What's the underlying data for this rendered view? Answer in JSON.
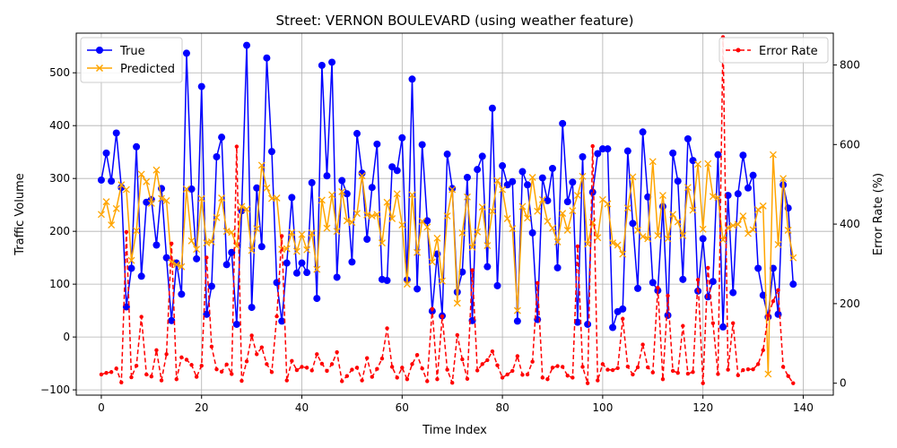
{
  "chart_data": {
    "type": "line",
    "title": "Street: VERNON BOULEVARD (using weather feature)",
    "xlabel": "Time Index",
    "ylabel_left": "Traffic Volume",
    "ylabel_right": "Error Rate (%)",
    "xlim": [
      -5,
      146
    ],
    "ylim_left": [
      -110,
      575
    ],
    "ylim_right": [
      -30,
      880
    ],
    "x_ticks": [
      0,
      20,
      40,
      60,
      80,
      100,
      120,
      140
    ],
    "y_ticks_left": [
      -100,
      0,
      100,
      200,
      300,
      400,
      500
    ],
    "y_ticks_right": [
      0,
      200,
      400,
      600,
      800
    ],
    "grid": true,
    "legend_left_position": "top-left",
    "legend_right_position": "top-right",
    "series": [
      {
        "name": "True",
        "axis": "left",
        "color": "#0000ff",
        "marker": "circle",
        "values": [
          297,
          348,
          295,
          386,
          283,
          57,
          130,
          360,
          115,
          255,
          260,
          174,
          281,
          150,
          31,
          140,
          81,
          537,
          280,
          148,
          474,
          43,
          96,
          341,
          378,
          137,
          160,
          24,
          239,
          552,
          56,
          282,
          171,
          528,
          351,
          103,
          30,
          140,
          264,
          121,
          140,
          122,
          292,
          73,
          514,
          305,
          520,
          113,
          296,
          271,
          142,
          385,
          310,
          185,
          283,
          365,
          109,
          107,
          322,
          315,
          377,
          108,
          488,
          91,
          364,
          220,
          49,
          157,
          40,
          346,
          281,
          85,
          123,
          302,
          31,
          317,
          342,
          133,
          433,
          97,
          324,
          288,
          294,
          30,
          313,
          288,
          197,
          33,
          301,
          258,
          319,
          131,
          404,
          256,
          293,
          28,
          341,
          24,
          274,
          347,
          356,
          356,
          18,
          48,
          53,
          352,
          215,
          92,
          388,
          265,
          103,
          88,
          247,
          41,
          348,
          295,
          109,
          375,
          334,
          87,
          186,
          76,
          105,
          345,
          19,
          268,
          84,
          271,
          344,
          282,
          306,
          130,
          79,
          38,
          130,
          43,
          288,
          244,
          100
        ]
      },
      {
        "name": "Predicted",
        "axis": "left",
        "color": "#ffa500",
        "marker": "x",
        "values": [
          232,
          256,
          212,
          243,
          288,
          279,
          145,
          201,
          308,
          294,
          253,
          316,
          262,
          258,
          141,
          137,
          133,
          280,
          182,
          166,
          262,
          178,
          180,
          226,
          263,
          200,
          198,
          172,
          247,
          242,
          164,
          205,
          325,
          282,
          262,
          263,
          166,
          167,
          198,
          162,
          194,
          165,
          197,
          128,
          259,
          206,
          269,
          200,
          275,
          220,
          217,
          234,
          305,
          231,
          229,
          232,
          178,
          255,
          224,
          271,
          212,
          100,
          269,
          160,
          219,
          208,
          142,
          187,
          106,
          229,
          279,
          64,
          197,
          265,
          170,
          199,
          246,
          173,
          238,
          296,
          279,
          224,
          205,
          50,
          247,
          225,
          302,
          238,
          260,
          219,
          206,
          180,
          234,
          202,
          239,
          268,
          304,
          176,
          217,
          188,
          260,
          252,
          178,
          174,
          157,
          244,
          303,
          202,
          190,
          186,
          332,
          192,
          268,
          186,
          232,
          218,
          192,
          283,
          240,
          327,
          204,
          328,
          266,
          264,
          184,
          207,
          211,
          213,
          229,
          196,
          203,
          241,
          248,
          -70,
          345,
          175,
          300,
          202,
          150
        ]
      },
      {
        "name": "Error Rate",
        "axis": "right",
        "color": "#ff0000",
        "marker": "dot",
        "dashed": true,
        "values": [
          22,
          26,
          28,
          37,
          2,
          380,
          15,
          44,
          167,
          22,
          17,
          83,
          7,
          73,
          351,
          10,
          65,
          59,
          46,
          16,
          44,
          316,
          92,
          35,
          29,
          47,
          23,
          595,
          6,
          55,
          120,
          73,
          90,
          48,
          28,
          168,
          370,
          7,
          56,
          33,
          41,
          39,
          32,
          73,
          49,
          31,
          48,
          78,
          5,
          18,
          34,
          39,
          7,
          63,
          16,
          36,
          62,
          138,
          41,
          14,
          39,
          10,
          48,
          71,
          37,
          5,
          187,
          10,
          168,
          34,
          1,
          121,
          60,
          11,
          284,
          32,
          48,
          58,
          80,
          45,
          14,
          22,
          31,
          68,
          21,
          22,
          54,
          252,
          14,
          10,
          39,
          43,
          41,
          19,
          14,
          344,
          41,
          0,
          596,
          7,
          48,
          34,
          33,
          38,
          162,
          42,
          22,
          40,
          97,
          40,
          27,
          240,
          10,
          220,
          31,
          26,
          144,
          24,
          28,
          260,
          0,
          290,
          151,
          23,
          870,
          34,
          151,
          20,
          33,
          35,
          35,
          48,
          83,
          170,
          206,
          234,
          41,
          18,
          0
        ]
      }
    ]
  }
}
